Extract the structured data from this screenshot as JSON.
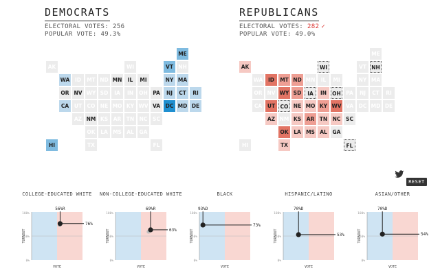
{
  "democrats": {
    "title": "DEMOCRATS",
    "electoral_label": "ELECTORAL VOTES:",
    "electoral_value": "256",
    "popular_label": "POPULAR VOTE:",
    "popular_value": "49.3%"
  },
  "republicans": {
    "title": "REPUBLICANS",
    "electoral_label": "ELECTORAL VOTES:",
    "electoral_value": "282",
    "popular_label": "POPULAR VOTE:",
    "popular_value": "49.0%",
    "winner_mark": "✓"
  },
  "colors": {
    "dem_light": "#bcd8ec",
    "dem_mid": "#7fbbe0",
    "dem_strong": "#1f8fd0",
    "rep_light": "#f6c9c3",
    "rep_mid": "#ee9e93",
    "rep_strong": "#e27464",
    "neutral": "#ececec",
    "neutral_text": "#ffffff",
    "chart_dem_bg": "#cfe4f3",
    "chart_rep_bg": "#f9d7d2"
  },
  "state_grid": [
    {
      "s": "ME",
      "c": 10,
      "r": 0
    },
    {
      "s": "AK",
      "c": 0,
      "r": 1
    },
    {
      "s": "WI",
      "c": 6,
      "r": 1
    },
    {
      "s": "VT",
      "c": 9,
      "r": 1
    },
    {
      "s": "NH",
      "c": 10,
      "r": 1
    },
    {
      "s": "WA",
      "c": 1,
      "r": 2
    },
    {
      "s": "ID",
      "c": 2,
      "r": 2
    },
    {
      "s": "MT",
      "c": 3,
      "r": 2
    },
    {
      "s": "ND",
      "c": 4,
      "r": 2
    },
    {
      "s": "MN",
      "c": 5,
      "r": 2
    },
    {
      "s": "IL",
      "c": 6,
      "r": 2
    },
    {
      "s": "MI",
      "c": 7,
      "r": 2
    },
    {
      "s": "NY",
      "c": 9,
      "r": 2
    },
    {
      "s": "MA",
      "c": 10,
      "r": 2
    },
    {
      "s": "OR",
      "c": 1,
      "r": 3
    },
    {
      "s": "NV",
      "c": 2,
      "r": 3
    },
    {
      "s": "WY",
      "c": 3,
      "r": 3
    },
    {
      "s": "SD",
      "c": 4,
      "r": 3
    },
    {
      "s": "IA",
      "c": 5,
      "r": 3
    },
    {
      "s": "IN",
      "c": 6,
      "r": 3
    },
    {
      "s": "OH",
      "c": 7,
      "r": 3
    },
    {
      "s": "PA",
      "c": 8,
      "r": 3
    },
    {
      "s": "NJ",
      "c": 9,
      "r": 3
    },
    {
      "s": "CT",
      "c": 10,
      "r": 3
    },
    {
      "s": "RI",
      "c": 11,
      "r": 3
    },
    {
      "s": "CA",
      "c": 1,
      "r": 4
    },
    {
      "s": "UT",
      "c": 2,
      "r": 4
    },
    {
      "s": "CO",
      "c": 3,
      "r": 4
    },
    {
      "s": "NE",
      "c": 4,
      "r": 4
    },
    {
      "s": "MO",
      "c": 5,
      "r": 4
    },
    {
      "s": "KY",
      "c": 6,
      "r": 4
    },
    {
      "s": "WV",
      "c": 7,
      "r": 4
    },
    {
      "s": "VA",
      "c": 8,
      "r": 4
    },
    {
      "s": "DC",
      "c": 9,
      "r": 4
    },
    {
      "s": "MD",
      "c": 10,
      "r": 4
    },
    {
      "s": "DE",
      "c": 11,
      "r": 4
    },
    {
      "s": "AZ",
      "c": 2,
      "r": 5
    },
    {
      "s": "NM",
      "c": 3,
      "r": 5
    },
    {
      "s": "KS",
      "c": 4,
      "r": 5
    },
    {
      "s": "AR",
      "c": 5,
      "r": 5
    },
    {
      "s": "TN",
      "c": 6,
      "r": 5
    },
    {
      "s": "NC",
      "c": 7,
      "r": 5
    },
    {
      "s": "SC",
      "c": 8,
      "r": 5
    },
    {
      "s": "OK",
      "c": 3,
      "r": 6
    },
    {
      "s": "LA",
      "c": 4,
      "r": 6
    },
    {
      "s": "MS",
      "c": 5,
      "r": 6
    },
    {
      "s": "AL",
      "c": 6,
      "r": 6
    },
    {
      "s": "GA",
      "c": 7,
      "r": 6
    },
    {
      "s": "HI",
      "c": 0,
      "r": 7
    },
    {
      "s": "TX",
      "c": 3,
      "r": 7
    },
    {
      "s": "FL",
      "c": 8,
      "r": 7
    }
  ],
  "dem_map_labels": {
    "ME": "mid",
    "WA": "light",
    "MN": "none",
    "IL": "none",
    "MI": "none",
    "NY": "light",
    "MA": "light",
    "VT": "mid",
    "OR": "none",
    "NV": "none",
    "PA": "none",
    "NJ": "light",
    "CT": "light",
    "RI": "light",
    "CA": "light",
    "VA": "none",
    "DC": "strong",
    "MD": "light",
    "DE": "light",
    "NM": "none",
    "HI": "mid"
  },
  "rep_map_labels": {
    "AK": "light",
    "WI": "dotted",
    "NH": "dotted",
    "ID": "strong",
    "MT": "mid",
    "ND": "mid",
    "WY": "strong",
    "SD": "mid",
    "IA": "dotted",
    "IN": "light",
    "OH": "dotted",
    "UT": "strong",
    "CO": "dotted",
    "NE": "light",
    "MO": "light",
    "KY": "mid",
    "WV": "strong",
    "AZ": "light",
    "KS": "light",
    "AR": "mid",
    "TN": "light",
    "NC": "light",
    "SC": "none",
    "OK": "strong",
    "LA": "light",
    "MS": "light",
    "AL": "light",
    "GA": "none",
    "TX": "light",
    "FL": "dotted"
  },
  "chart_data": [
    {
      "type": "scatter",
      "title": "COLLEGE-EDUCATED WHITE",
      "xlabel": "VOTE",
      "ylabel": "TURNOUT",
      "yticks": [
        "100%",
        "50%",
        "0%"
      ],
      "vote_label": "56%R",
      "turnout_label": "76%",
      "vote_pct_r": 56,
      "turnout_pct": 76,
      "ghost_vote_pct_r": 55,
      "ghost_turnout_pct": 73
    },
    {
      "type": "scatter",
      "title": "NON-COLLEGE-EDUCATED WHITE",
      "xlabel": "VOTE",
      "ylabel": "TURNOUT",
      "yticks": [
        "100%",
        "50%",
        "0%"
      ],
      "vote_label": "69%R",
      "turnout_label": "63%",
      "vote_pct_r": 69,
      "turnout_pct": 63,
      "ghost_vote_pct_r": 65,
      "ghost_turnout_pct": 59
    },
    {
      "type": "scatter",
      "title": "BLACK",
      "xlabel": "VOTE",
      "ylabel": "TURNOUT",
      "yticks": [
        "100%",
        "50%",
        "0%"
      ],
      "vote_label": "93%D",
      "turnout_label": "73%",
      "vote_pct_r": 7,
      "turnout_pct": 73,
      "ghost_vote_pct_r": 7,
      "ghost_turnout_pct": 72
    },
    {
      "type": "scatter",
      "title": "HISPANIC/LATINO",
      "xlabel": "VOTE",
      "ylabel": "TURNOUT",
      "yticks": [
        "100%",
        "50%",
        "0%"
      ],
      "vote_label": "70%D",
      "turnout_label": "53%",
      "vote_pct_r": 30,
      "turnout_pct": 53,
      "ghost_vote_pct_r": 29,
      "ghost_turnout_pct": 52
    },
    {
      "type": "scatter",
      "title": "ASIAN/OTHER",
      "xlabel": "VOTE",
      "ylabel": "TURNOUT",
      "yticks": [
        "100%",
        "50%",
        "0%"
      ],
      "vote_label": "70%D",
      "turnout_label": "54%",
      "vote_pct_r": 30,
      "turnout_pct": 54,
      "ghost_vote_pct_r": 29,
      "ghost_turnout_pct": 53
    }
  ],
  "controls": {
    "reset_label": "RESET",
    "share_icon": "twitter-icon"
  }
}
